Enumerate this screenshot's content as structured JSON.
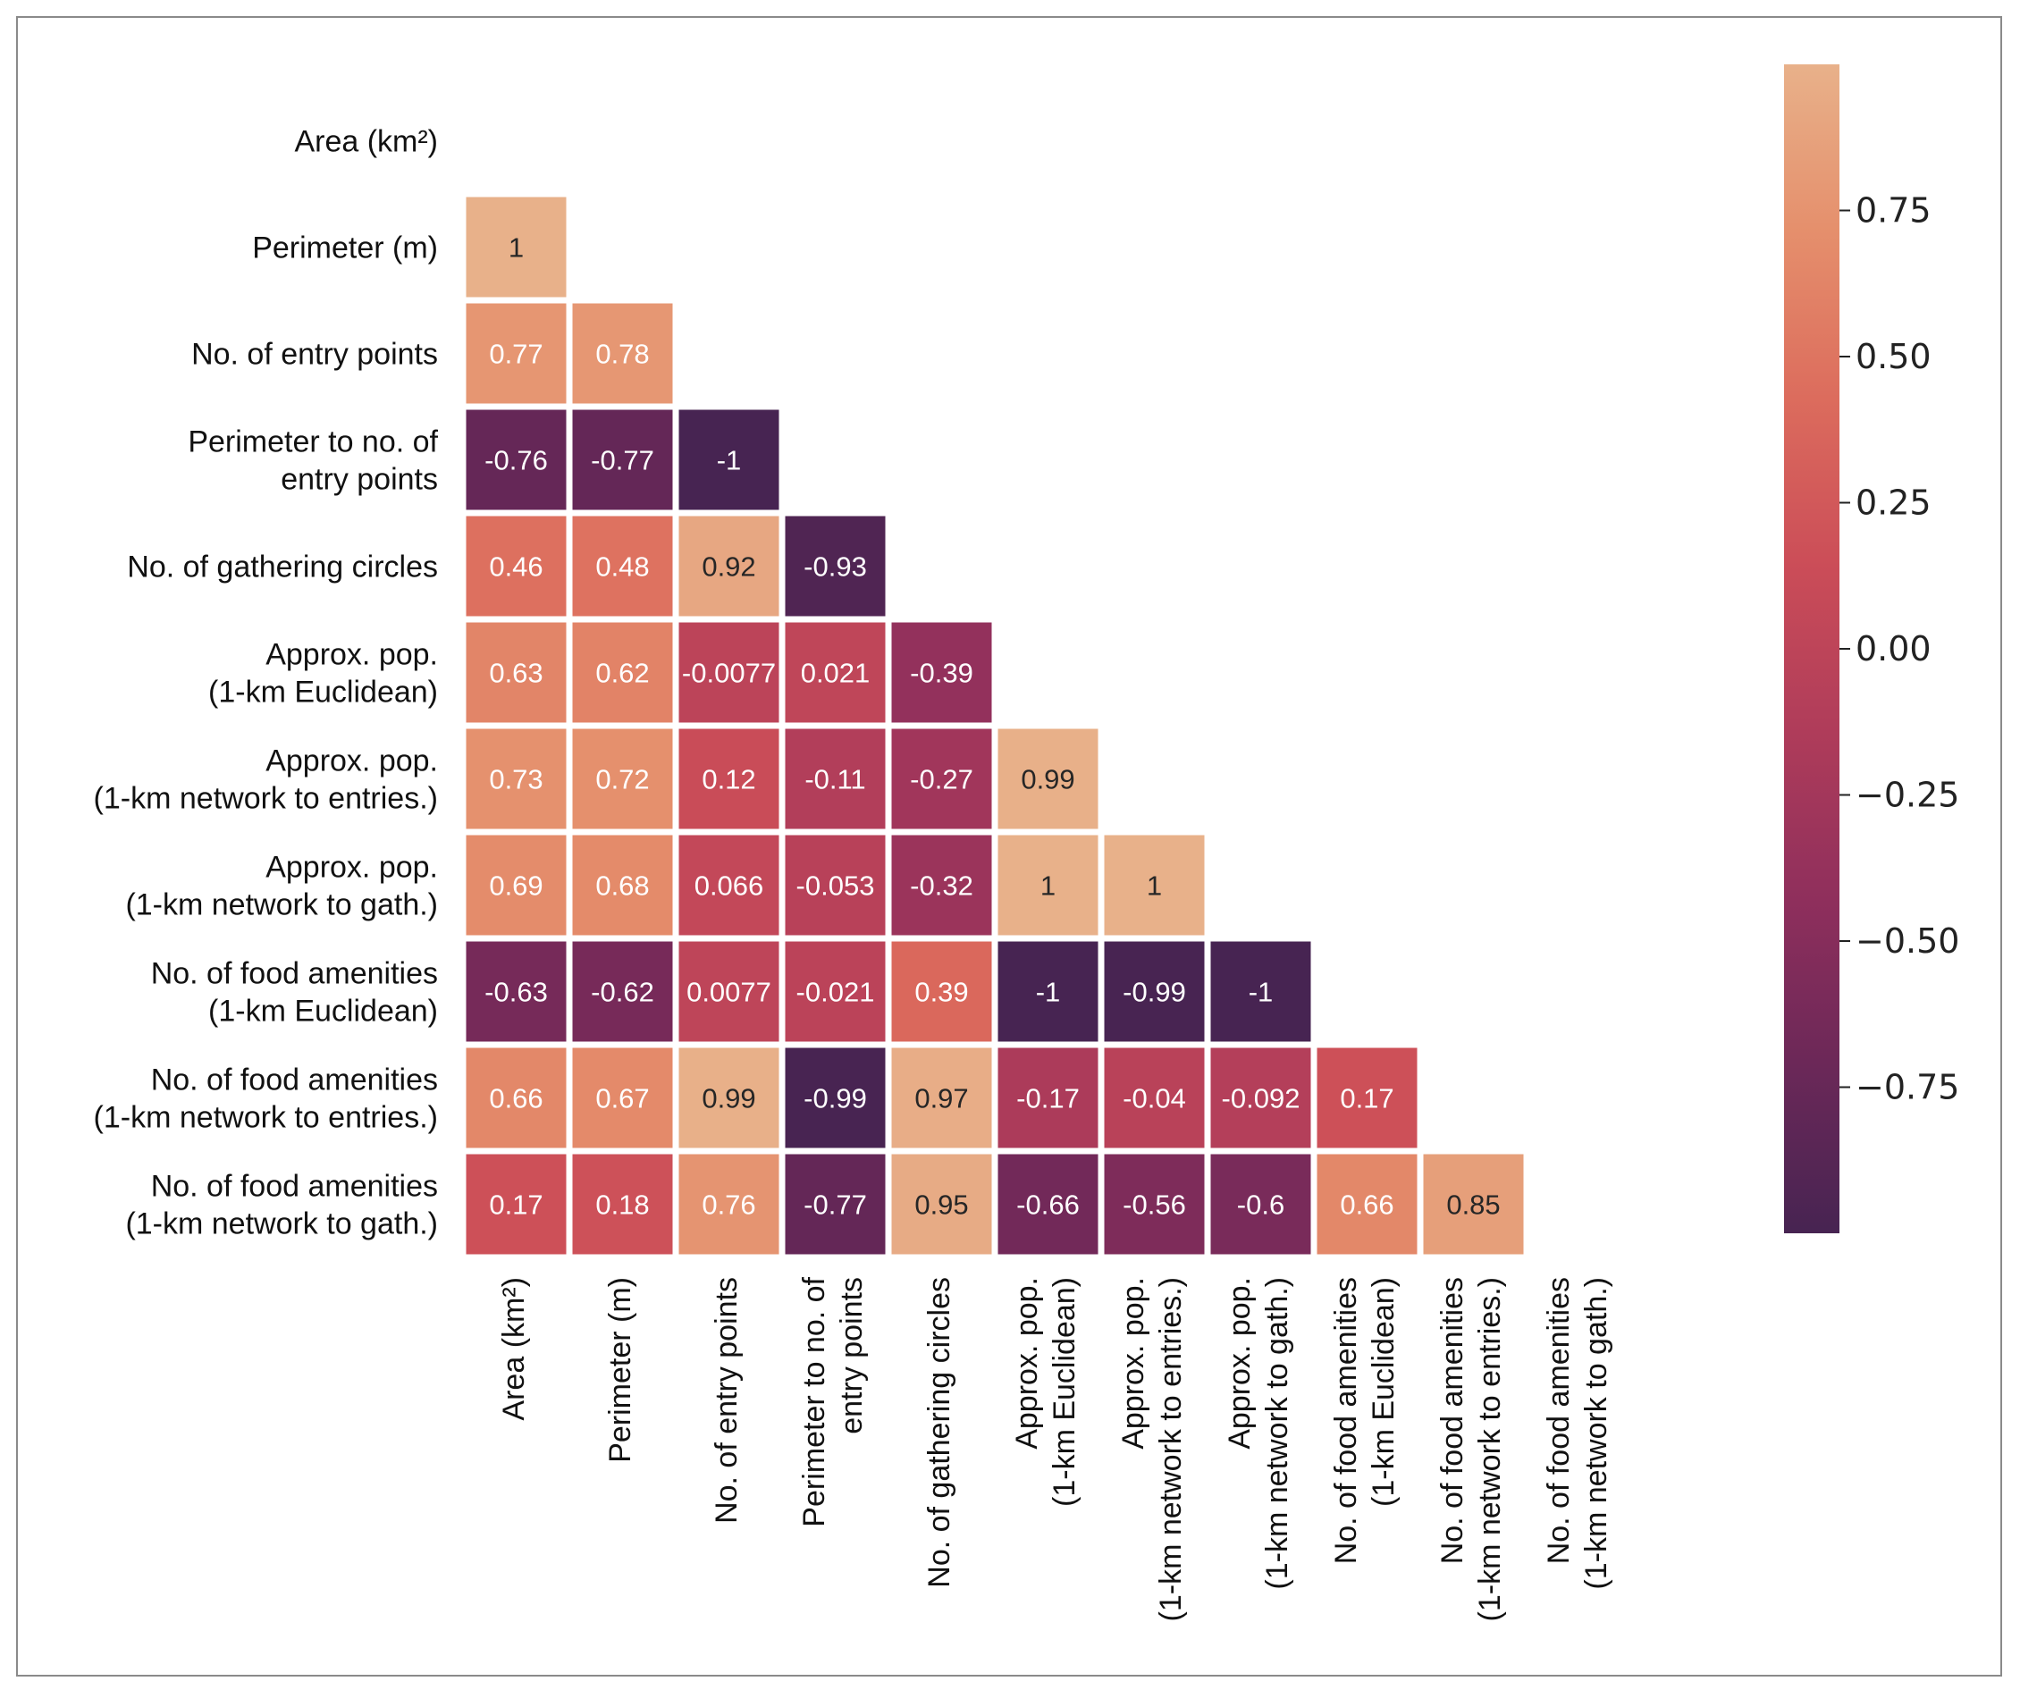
{
  "chart_data": {
    "type": "heatmap",
    "title": "",
    "variables": [
      [
        "Area (km²)"
      ],
      [
        "Perimeter (m)"
      ],
      [
        "No. of entry points"
      ],
      [
        "Perimeter to no. of",
        "entry points"
      ],
      [
        "No. of gathering circles"
      ],
      [
        "Approx. pop.",
        "(1-km Euclidean)"
      ],
      [
        "Approx. pop.",
        "(1-km network to entries.)"
      ],
      [
        "Approx. pop.",
        "(1-km network to gath.)"
      ],
      [
        "No. of food amenities",
        "(1-km Euclidean)"
      ],
      [
        "No. of food amenities",
        "(1-km network to entries.)"
      ],
      [
        "No. of food amenities",
        "(1-km network to gath.)"
      ]
    ],
    "lower_triangle": [
      [],
      [
        "1"
      ],
      [
        "0.77",
        "0.78"
      ],
      [
        "-0.76",
        "-0.77",
        "-1"
      ],
      [
        "0.46",
        "0.48",
        "0.92",
        "-0.93"
      ],
      [
        "0.63",
        "0.62",
        "-0.0077",
        "0.021",
        "-0.39"
      ],
      [
        "0.73",
        "0.72",
        "0.12",
        "-0.11",
        "-0.27",
        "0.99"
      ],
      [
        "0.69",
        "0.68",
        "0.066",
        "-0.053",
        "-0.32",
        "1",
        "1"
      ],
      [
        "-0.63",
        "-0.62",
        "0.0077",
        "-0.021",
        "0.39",
        "-1",
        "-0.99",
        "-1"
      ],
      [
        "0.66",
        "0.67",
        "0.99",
        "-0.99",
        "0.97",
        "-0.17",
        "-0.04",
        "-0.092",
        "0.17"
      ],
      [
        "0.17",
        "0.18",
        "0.76",
        "-0.77",
        "0.95",
        "-0.66",
        "-0.56",
        "-0.6",
        "0.66",
        "0.85"
      ]
    ],
    "colorbar": {
      "range": [
        -1,
        1
      ],
      "ticks": [
        0.75,
        0.5,
        0.25,
        0.0,
        -0.25,
        -0.5,
        -0.75
      ],
      "tick_labels": [
        "0.75",
        "0.50",
        "0.25",
        "0.00",
        "−0.25",
        "−0.50",
        "−0.75"
      ],
      "colormap": "flare",
      "colors": [
        "#e8b18a",
        "#e58f6c",
        "#dc6c5d",
        "#cb4d58",
        "#af3c5a",
        "#8f2f5c",
        "#6b2858",
        "#472452"
      ]
    },
    "grid": true,
    "legend": "colorbar-right"
  }
}
